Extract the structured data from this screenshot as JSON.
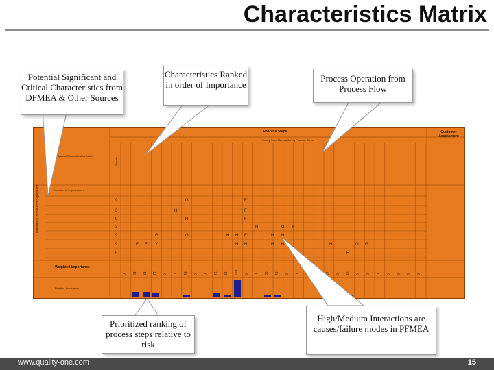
{
  "slide": {
    "title": "Characteristics Matrix",
    "footer_url": "www.quality-one.com",
    "page_number": "15"
  },
  "callouts": {
    "potential": "Potential Significant and Critical Characteristics from DFMEA & Other Sources",
    "ranked": "Characteristics Ranked in order of Importance",
    "process_operation": "Process Operation from Process Flow",
    "prioritized": "Prioritized ranking of process steps relative to risk",
    "interactions": "High/Medium Interactions are causes/failure modes in PFMEA"
  },
  "matrix": {
    "process_steps_label": "Process Steps",
    "primary_label": "Primary Core Manufacturing Process Steps",
    "customer_assessment_label": "Customer Assessment",
    "special_char_label": "Special Characteristics Matrix",
    "direction_label": "Direction of Improvement",
    "side_label": "Potential Critical and Significant",
    "weighted_label": "Weighted Importance",
    "relative_label": "Relative Importance",
    "severity_label": "Severity",
    "weighted_values": [
      "0",
      "81",
      "81",
      "72",
      "0",
      "0",
      "45",
      "0",
      "0",
      "72",
      "36",
      "270",
      "0",
      "0",
      "36",
      "45",
      "0",
      "0",
      "0",
      "0",
      "27",
      "0",
      "45",
      "0",
      "0",
      "0",
      "0",
      "0",
      "0",
      "0"
    ],
    "severities": [
      "9",
      "3",
      "9",
      "3",
      "9",
      "9",
      "5"
    ],
    "cells": [
      "G",
      "F",
      "H",
      "F",
      "H",
      "F",
      "H",
      "G",
      "F",
      "G",
      "G",
      "H",
      "H",
      "F",
      "H",
      "H",
      "F",
      "F",
      "Y",
      "H",
      "H",
      "H",
      "H",
      "H",
      "G",
      "G",
      "F"
    ]
  },
  "colors": {
    "matrix_fill": "#e77a1f",
    "bar_fill": "#1d1d8f",
    "footer_bar": "#4a4a4a"
  }
}
